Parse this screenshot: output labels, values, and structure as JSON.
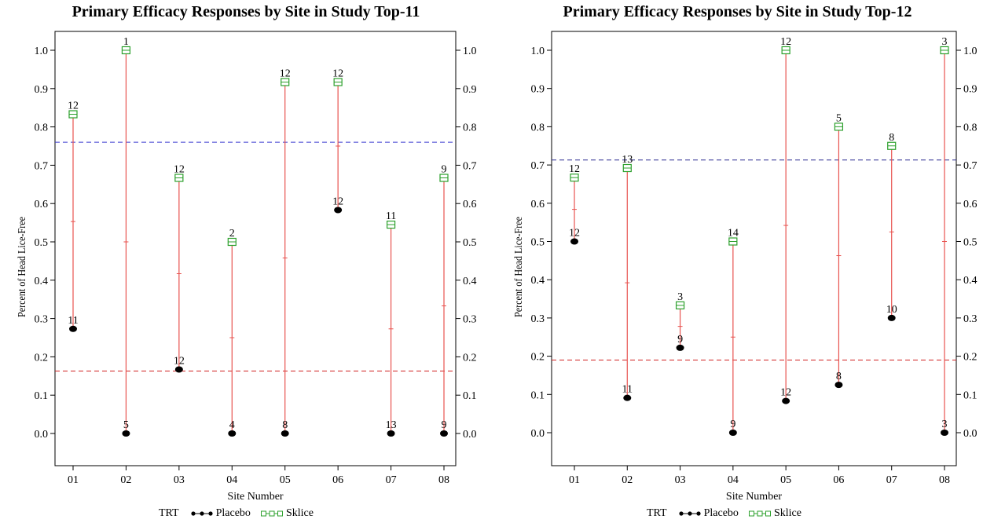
{
  "chart_data": [
    {
      "type": "scatter",
      "title": "Primary Efficacy Responses by Site in Study Top-11",
      "xlabel": "Site Number",
      "ylabel": "Percent of Head Lice-Free",
      "categories": [
        "01",
        "02",
        "03",
        "04",
        "05",
        "06",
        "07",
        "08"
      ],
      "ylim": [
        0.0,
        1.0
      ],
      "yticks": [
        "0.0",
        "0.1",
        "0.2",
        "0.3",
        "0.4",
        "0.5",
        "0.6",
        "0.7",
        "0.8",
        "0.9",
        "1.0"
      ],
      "grid": false,
      "legend_position": "bottom",
      "legend_title": "TRT",
      "series": [
        {
          "name": "Placebo",
          "values": [
            0.273,
            0.0,
            0.167,
            0.0,
            0.0,
            0.583,
            0.0,
            0.0
          ],
          "labels": [
            "11",
            "5",
            "12",
            "4",
            "8",
            "12",
            "13",
            "9"
          ],
          "color": "#000000"
        },
        {
          "name": "Sklice",
          "values": [
            0.833,
            1.0,
            0.667,
            0.5,
            0.917,
            0.917,
            0.545,
            0.667
          ],
          "labels": [
            "12",
            "1",
            "12",
            "2",
            "12",
            "12",
            "11",
            "9"
          ],
          "color": "#2ca02c"
        }
      ],
      "midpoints": [
        0.553,
        0.5,
        0.417,
        0.25,
        0.458,
        0.75,
        0.273,
        0.333
      ],
      "reference_lines": [
        {
          "value": 0.76,
          "color": "#3a3ad0"
        },
        {
          "value": 0.163,
          "color": "#d02020"
        }
      ],
      "range_color": "#e8534f"
    },
    {
      "type": "scatter",
      "title": "Primary Efficacy Responses by Site in Study Top-12",
      "xlabel": "Site Number",
      "ylabel": "Percent of Head Lice-Free",
      "categories": [
        "01",
        "02",
        "03",
        "04",
        "05",
        "06",
        "07",
        "08"
      ],
      "ylim": [
        0.0,
        1.0
      ],
      "yticks": [
        "0.0",
        "0.1",
        "0.2",
        "0.3",
        "0.4",
        "0.5",
        "0.6",
        "0.7",
        "0.8",
        "0.9",
        "1.0"
      ],
      "grid": false,
      "legend_position": "bottom",
      "legend_title": "TRT",
      "series": [
        {
          "name": "Placebo",
          "values": [
            0.5,
            0.091,
            0.222,
            0.0,
            0.083,
            0.125,
            0.3,
            0.0
          ],
          "labels": [
            "12",
            "11",
            "9",
            "9",
            "12",
            "8",
            "10",
            "3"
          ],
          "color": "#000000"
        },
        {
          "name": "Sklice",
          "values": [
            0.667,
            0.692,
            0.333,
            0.5,
            1.0,
            0.8,
            0.75,
            1.0
          ],
          "labels": [
            "12",
            "13",
            "3",
            "14",
            "12",
            "5",
            "8",
            "3"
          ],
          "color": "#2ca02c"
        }
      ],
      "midpoints": [
        0.584,
        0.392,
        0.278,
        0.25,
        0.542,
        0.463,
        0.525,
        0.5
      ],
      "reference_lines": [
        {
          "value": 0.713,
          "color": "#2a2a90"
        },
        {
          "value": 0.19,
          "color": "#d02020"
        }
      ],
      "range_color": "#e8534f"
    }
  ]
}
